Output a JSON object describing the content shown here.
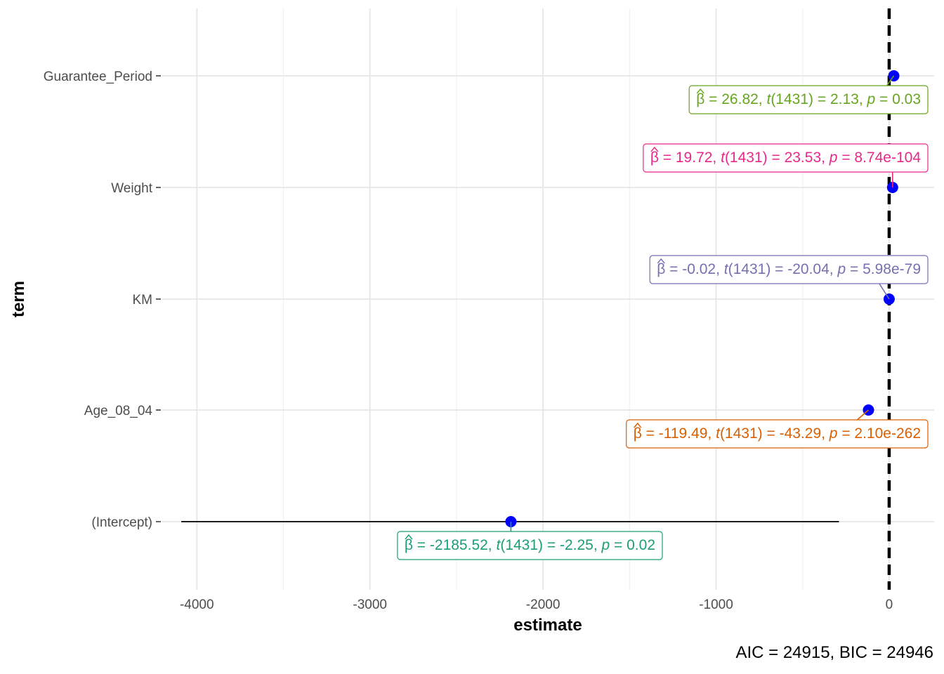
{
  "chart_data": {
    "type": "scatter",
    "subtype": "coefficient-plot",
    "xlabel": "estimate",
    "ylabel": "term",
    "xlim": [
      -4200,
      260
    ],
    "x_ticks": [
      -4000,
      -3000,
      -2000,
      -1000,
      0
    ],
    "x_tick_labels": [
      "-4000",
      "-3000",
      "-2000",
      "-1000",
      "0"
    ],
    "reference_line_x": 0,
    "grid": true,
    "point_color": "#0000ff",
    "terms": [
      {
        "name": "Guarantee_Period",
        "estimate": 26.82,
        "ci_low": 2.1,
        "ci_high": 51.5,
        "stat_text": "= 26.82, ",
        "t_df": "(1431)",
        "t_text": " = 2.13, ",
        "p_text": " = 0.03",
        "color": "#66a61e"
      },
      {
        "name": "Weight",
        "estimate": 19.72,
        "ci_low": 18.1,
        "ci_high": 21.4,
        "stat_text": "= 19.72, ",
        "t_df": "(1431)",
        "t_text": " = 23.53, ",
        "p_text": " = 8.74e-104",
        "color": "#e7298a"
      },
      {
        "name": "KM",
        "estimate": -0.02,
        "ci_low": -0.022,
        "ci_high": -0.018,
        "stat_text": "= -0.02, ",
        "t_df": "(1431)",
        "t_text": " = -20.04, ",
        "p_text": " = 5.98e-79",
        "color": "#7570b3"
      },
      {
        "name": "Age_08_04",
        "estimate": -119.49,
        "ci_low": -124.9,
        "ci_high": -114.1,
        "stat_text": "= -119.49, ",
        "t_df": "(1431)",
        "t_text": " = -43.29, ",
        "p_text": " = 2.10e-262",
        "color": "#d95f02"
      },
      {
        "name": "(Intercept)",
        "estimate": -2185.52,
        "ci_low": -4090,
        "ci_high": -290,
        "stat_text": "= -2185.52, ",
        "t_df": "(1431)",
        "t_text": " = -2.25, ",
        "p_text": " = 0.02",
        "color": "#1b9e77"
      }
    ],
    "caption_aic": "AIC = 24915, ",
    "caption_bic": "BIC = 24946"
  }
}
